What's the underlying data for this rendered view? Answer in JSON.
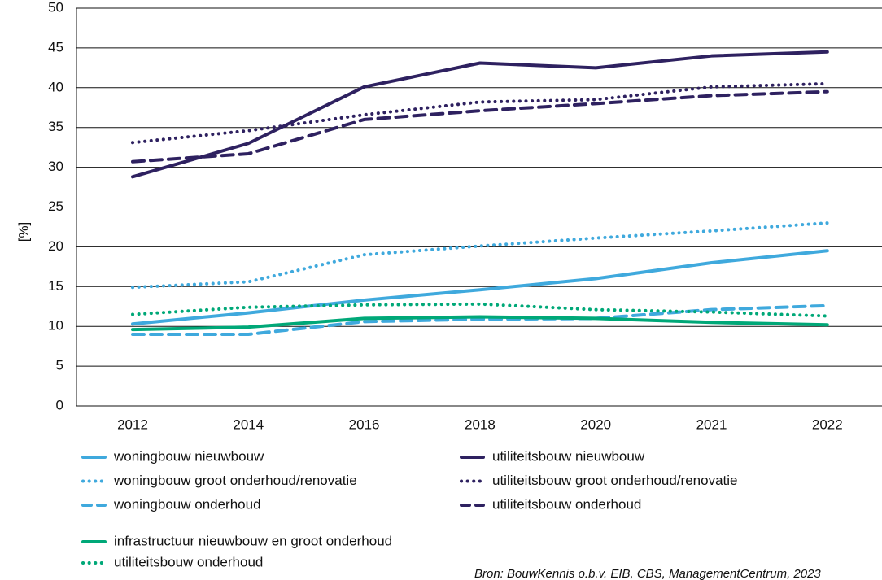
{
  "chart_data": {
    "type": "line",
    "y_label": "[%]",
    "source": "Bron: BouwKennis o.b.v. EIB, CBS, ManagementCentrum, 2023",
    "categories": [
      "2012",
      "2014",
      "2016",
      "2018",
      "2020",
      "2021",
      "2022"
    ],
    "ylim": [
      0,
      50
    ],
    "yticks": [
      0,
      5,
      10,
      15,
      20,
      25,
      30,
      35,
      40,
      45,
      50
    ],
    "grid": true,
    "series": [
      {
        "name": "woningbouw nieuwbouw",
        "color": "#3fa9dd",
        "style": "solid",
        "values": [
          10.3,
          11.7,
          13.3,
          14.6,
          16.0,
          18.0,
          19.5
        ]
      },
      {
        "name": "utiliteitsbouw nieuwbouw",
        "color": "#2e2160",
        "style": "solid",
        "values": [
          28.8,
          33.0,
          40.1,
          43.1,
          42.5,
          44.0,
          44.5
        ]
      },
      {
        "name": "woningbouw groot onderhoud/renovatie",
        "color": "#3fa9dd",
        "style": "dotted",
        "values": [
          14.9,
          15.6,
          19.0,
          20.1,
          21.1,
          22.0,
          23.0
        ]
      },
      {
        "name": "utiliteitsbouw groot onderhoud/renovatie",
        "color": "#2e2160",
        "style": "dotted",
        "values": [
          33.1,
          34.6,
          36.6,
          38.2,
          38.5,
          40.1,
          40.5
        ]
      },
      {
        "name": "woningbouw onderhoud",
        "color": "#3fa9dd",
        "style": "dashed",
        "values": [
          9.0,
          9.0,
          10.6,
          10.9,
          11.0,
          12.1,
          12.6
        ]
      },
      {
        "name": "utiliteitsbouw onderhoud",
        "color": "#2e2160",
        "style": "dashed",
        "values": [
          30.7,
          31.7,
          36.0,
          37.1,
          38.0,
          39.0,
          39.5
        ]
      },
      {
        "name": "infrastructuur nieuwbouw en groot onderhoud",
        "color": "#00a878",
        "style": "solid",
        "values": [
          9.6,
          9.9,
          11.0,
          11.2,
          11.0,
          10.5,
          10.2
        ]
      },
      {
        "name": "utiliteitsbouw onderhoud",
        "color": "#00a878",
        "style": "dotted",
        "values": [
          11.5,
          12.4,
          12.7,
          12.8,
          12.1,
          11.8,
          11.3
        ]
      }
    ]
  }
}
